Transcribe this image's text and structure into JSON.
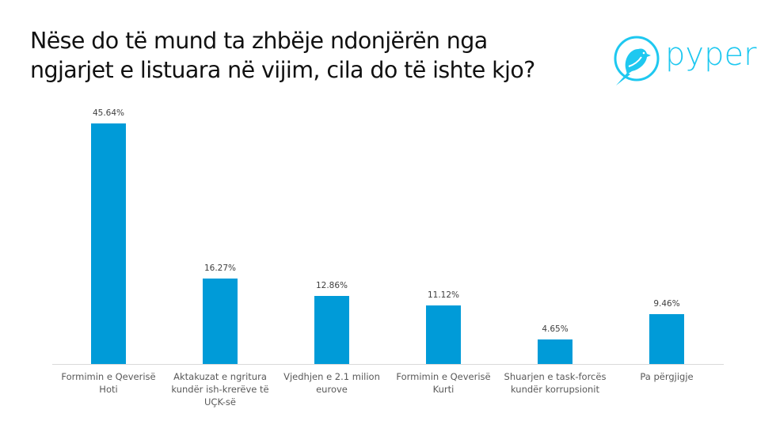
{
  "title": {
    "line1": "Nëse do të mund ta zhbëje ndonjërën nga",
    "line2": "ngjarjet e listuara në vijim, cila do të ishte kjo?"
  },
  "logo": {
    "text": "pyper",
    "icon": "bird-in-circle-icon",
    "color": "#1ec8f0"
  },
  "colors": {
    "bar": "#009bd8",
    "axis": "#d9d9d9",
    "label": "#595959"
  },
  "chart_data": {
    "type": "bar",
    "title": "Nëse do të mund ta zhbëje ndonjërën nga ngjarjet e listuara në vijim, cila do të ishte kjo?",
    "categories": [
      "Formimin e Qeverisë Hoti",
      "Aktakuzat e ngritura kundër ish-krerëve të UÇK-së",
      "Vjedhjen e 2.1 milion eurove",
      "Formimin e Qeverisë Kurti",
      "Shuarjen e task-forcës kundër korrupsionit",
      "Pa përgjigje"
    ],
    "values": [
      45.64,
      16.27,
      12.86,
      11.12,
      4.65,
      9.46
    ],
    "labels": [
      "45.64%",
      "16.27%",
      "12.86%",
      "11.12%",
      "4.65%",
      "9.46%"
    ],
    "xlabel": "",
    "ylabel": "",
    "ylim": [
      0,
      50
    ],
    "grid": false,
    "legend": "none",
    "data_labels": true
  },
  "categories_display": [
    [
      "Formimin e Qeverisë",
      "Hoti"
    ],
    [
      "Aktakuzat e ngritura",
      "kundër ish-krerëve të",
      "UÇK-së"
    ],
    [
      "Vjedhjen e 2.1 milion",
      "eurove"
    ],
    [
      "Formimin e Qeverisë",
      "Kurti"
    ],
    [
      "Shuarjen e task-forcës",
      "kundër korrupsionit"
    ],
    [
      "Pa përgjigje"
    ]
  ]
}
